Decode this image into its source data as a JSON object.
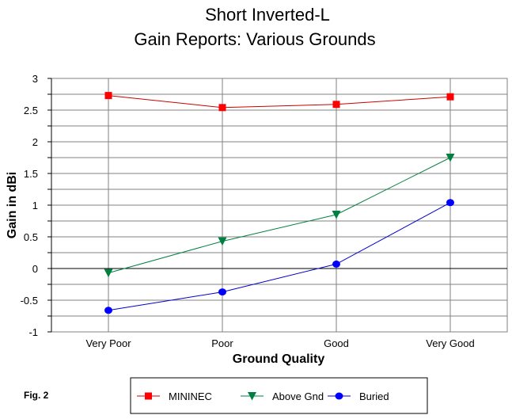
{
  "chart_data": {
    "type": "line",
    "title": "Short Inverted-L",
    "subtitle": "Gain Reports:  Various Grounds",
    "xlabel": "Ground Quality",
    "ylabel": "Gain in dBi",
    "categories": [
      "Very Poor",
      "Poor",
      "Good",
      "Very Good"
    ],
    "ylim": [
      -1,
      3
    ],
    "yticks": [
      3,
      2.5,
      2,
      1.5,
      1,
      0.5,
      0,
      -0.5,
      -1
    ],
    "ytick_labels": [
      "3",
      "2.5",
      "2",
      "1.5",
      "1",
      "0.5",
      "0",
      "-0.5",
      "-1"
    ],
    "grid": true,
    "legend_position": "bottom",
    "series": [
      {
        "name": "MININEC",
        "values": [
          2.73,
          2.54,
          2.59,
          2.71
        ],
        "color": "#ff0000",
        "line_color": "#cc0000",
        "marker": "square"
      },
      {
        "name": "Above Gnd",
        "values": [
          -0.07,
          0.43,
          0.85,
          1.75
        ],
        "color": "#008040",
        "line_color": "#008040",
        "marker": "triangle-down"
      },
      {
        "name": "Buried",
        "values": [
          -0.66,
          -0.37,
          0.07,
          1.04
        ],
        "color": "#0000ff",
        "line_color": "#0000cc",
        "marker": "circle"
      }
    ]
  },
  "figure_label": "Fig. 2"
}
